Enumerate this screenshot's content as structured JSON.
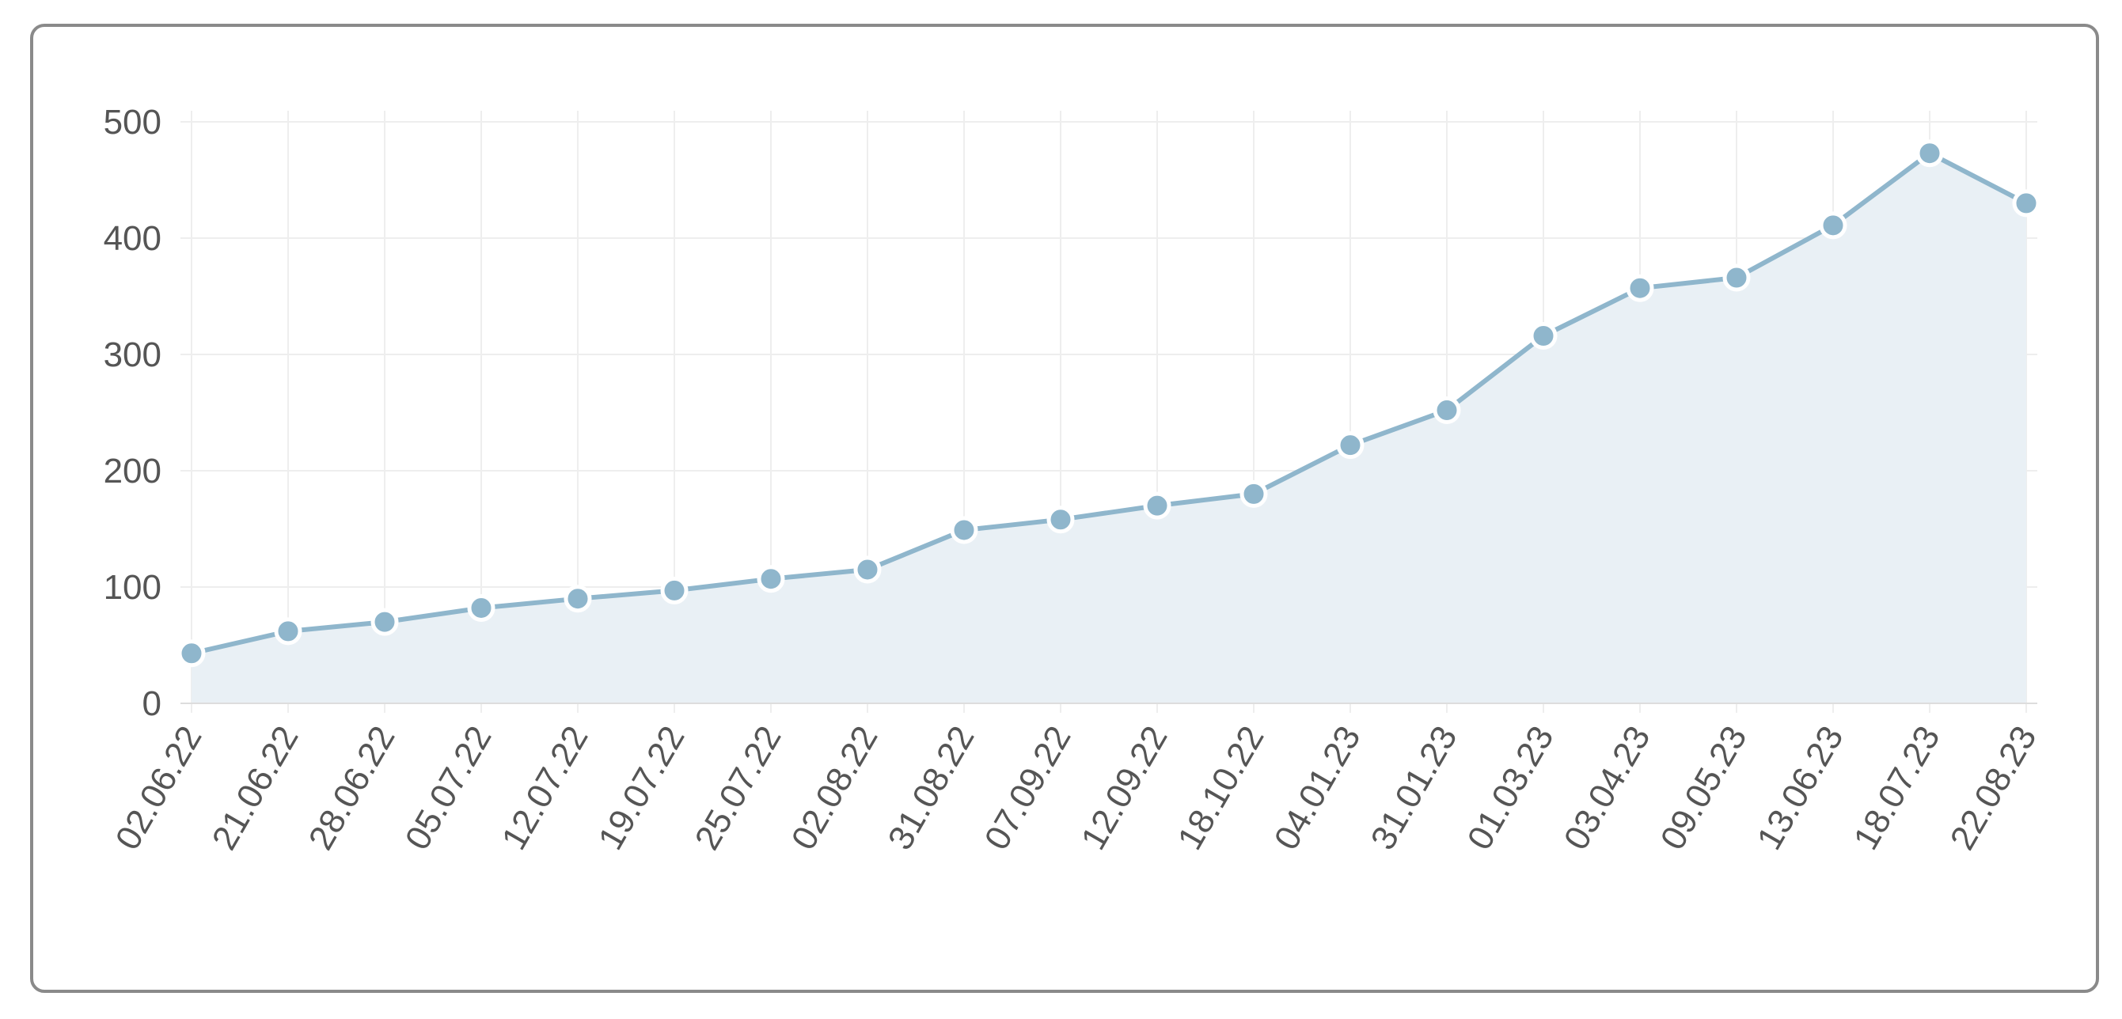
{
  "chart_data": {
    "type": "area",
    "categories": [
      "02.06.22",
      "21.06.22",
      "28.06.22",
      "05.07.22",
      "12.07.22",
      "19.07.22",
      "25.07.22",
      "02.08.22",
      "31.08.22",
      "07.09.22",
      "12.09.22",
      "18.10.22",
      "04.01.23",
      "31.01.23",
      "01.03.23",
      "03.04.23",
      "09.05.23",
      "13.06.23",
      "18.07.23",
      "22.08.23"
    ],
    "values": [
      43,
      62,
      70,
      82,
      90,
      97,
      107,
      115,
      149,
      158,
      170,
      180,
      222,
      252,
      316,
      357,
      366,
      411,
      473,
      430
    ],
    "ylim": [
      0,
      500
    ],
    "yticks": [
      0,
      100,
      200,
      300,
      400,
      500
    ],
    "title": "",
    "xlabel": "",
    "ylabel": "",
    "grid": true,
    "colors": {
      "line": "#8fb6cc",
      "fill": "#e9f0f5",
      "marker": "#8fb6cc",
      "grid": "#eeeeee",
      "axis": "#dddddd",
      "text": "#555555"
    }
  }
}
